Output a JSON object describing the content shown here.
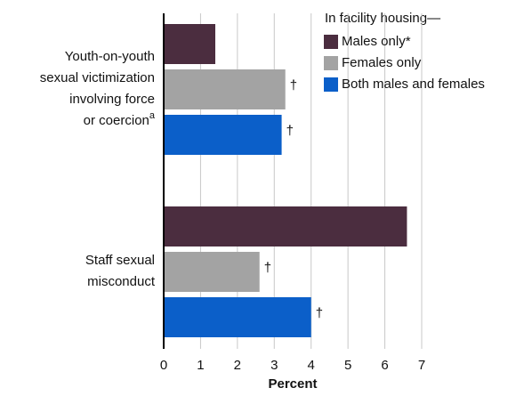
{
  "chart_data": {
    "type": "barh",
    "categories": [
      [
        "Youth-on-youth",
        "sexual victimization",
        "involving force",
        "or coercion"
      ],
      [
        "Staff sexual",
        "misconduct"
      ]
    ],
    "category_superscripts": [
      "a",
      null
    ],
    "legend_title": "In facility housing—",
    "series": [
      {
        "name": "Males only*",
        "color": "#4b2d3f",
        "values": [
          1.4,
          6.6
        ]
      },
      {
        "name": "Females only",
        "color": "#a3a3a3",
        "values": [
          3.3,
          2.6
        ],
        "annotations": [
          "†",
          "†"
        ]
      },
      {
        "name": "Both males and females",
        "color": "#0b5fc9",
        "values": [
          3.2,
          4.0
        ],
        "annotations": [
          "†",
          "†"
        ]
      }
    ],
    "xlabel": "Percent",
    "xlim": [
      0,
      7
    ],
    "xticks": [
      0,
      1,
      2,
      3,
      4,
      5,
      6,
      7
    ],
    "grid": true,
    "legend": "upper right"
  }
}
